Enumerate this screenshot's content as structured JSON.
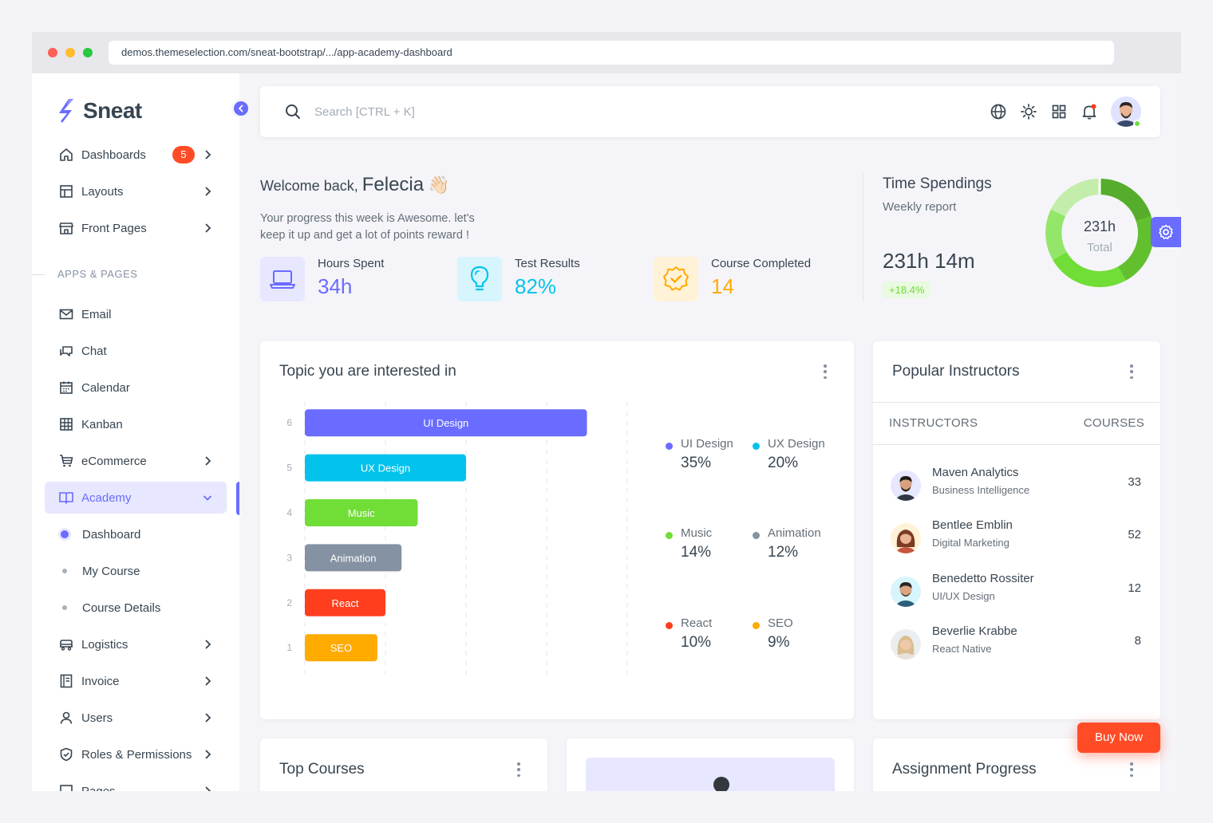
{
  "browser": {
    "url": "demos.themeselection.com/sneat-bootstrap/.../app-academy-dashboard"
  },
  "sidebar": {
    "brand": "Sneat",
    "section_header": "APPS & PAGES",
    "dashboards": {
      "label": "Dashboards",
      "badge": "5"
    },
    "items_top": [
      {
        "label": "Layouts"
      },
      {
        "label": "Front Pages"
      }
    ],
    "apps": [
      {
        "label": "Email"
      },
      {
        "label": "Chat"
      },
      {
        "label": "Calendar"
      },
      {
        "label": "Kanban"
      },
      {
        "label": "eCommerce"
      }
    ],
    "academy": {
      "label": "Academy",
      "children": [
        {
          "label": "Dashboard"
        },
        {
          "label": "My Course"
        },
        {
          "label": "Course Details"
        }
      ]
    },
    "items_bottom": [
      {
        "label": "Logistics"
      },
      {
        "label": "Invoice"
      },
      {
        "label": "Users"
      },
      {
        "label": "Roles & Permissions"
      },
      {
        "label": "Pages"
      }
    ]
  },
  "navbar": {
    "search_placeholder": "Search [CTRL + K]"
  },
  "welcome": {
    "greeting": "Welcome back,",
    "name": "Felecia",
    "emoji": "👋🏻",
    "subtitle": "Your progress this week is Awesome. let's keep it up and get a lot of points reward !",
    "stats": [
      {
        "label": "Hours Spent",
        "value": "34h",
        "color": "#696cff"
      },
      {
        "label": "Test Results",
        "value": "82%",
        "color": "#03c3ec"
      },
      {
        "label": "Course Completed",
        "value": "14",
        "color": "#ffab00"
      }
    ]
  },
  "time_spendings": {
    "title": "Time Spendings",
    "subtitle": "Weekly report",
    "value": "231h 14m",
    "badge": "+18.4%",
    "donut_center": "231h",
    "donut_label": "Total"
  },
  "topics": {
    "title": "Topic you are interested in",
    "chart_data": {
      "type": "bar",
      "orientation": "horizontal",
      "categories": [
        "UI Design",
        "UX Design",
        "Music",
        "Animation",
        "React",
        "SEO"
      ],
      "y_ticks": [
        "6",
        "5",
        "4",
        "3",
        "2",
        "1"
      ],
      "values": [
        35,
        20,
        14,
        12,
        10,
        9
      ],
      "colors": [
        "#696cff",
        "#03c3ec",
        "#71dd37",
        "#8592a3",
        "#ff3e1d",
        "#ffab00"
      ],
      "x_ticks": [
        "0%",
        "10%",
        "20%",
        "30%",
        "40%"
      ],
      "xlim": [
        0,
        40
      ],
      "grid": "vertical dashed"
    },
    "legend": [
      {
        "name": "UI Design",
        "value": "35%",
        "color": "#696cff"
      },
      {
        "name": "UX Design",
        "value": "20%",
        "color": "#03c3ec"
      },
      {
        "name": "Music",
        "value": "14%",
        "color": "#71dd37"
      },
      {
        "name": "Animation",
        "value": "12%",
        "color": "#8592a3"
      },
      {
        "name": "React",
        "value": "10%",
        "color": "#ff3e1d"
      },
      {
        "name": "SEO",
        "value": "9%",
        "color": "#ffab00"
      }
    ]
  },
  "instructors": {
    "title": "Popular Instructors",
    "col_instructors": "INSTRUCTORS",
    "col_courses": "COURSES",
    "rows": [
      {
        "name": "Maven Analytics",
        "role": "Business Intelligence",
        "courses": "33"
      },
      {
        "name": "Bentlee Emblin",
        "role": "Digital Marketing",
        "courses": "52"
      },
      {
        "name": "Benedetto Rossiter",
        "role": "UI/UX Design",
        "courses": "12"
      },
      {
        "name": "Beverlie Krabbe",
        "role": "React Native",
        "courses": "8"
      }
    ]
  },
  "top_courses": {
    "title": "Top Courses"
  },
  "assignment": {
    "title": "Assignment Progress"
  },
  "buy_now": "Buy Now"
}
